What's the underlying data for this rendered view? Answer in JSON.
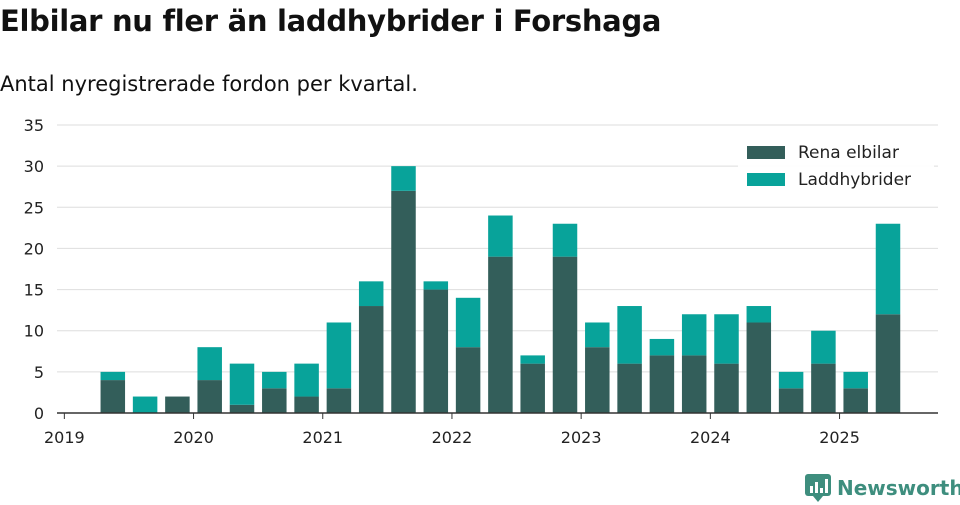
{
  "title": "Elbilar nu fler än laddhybrider i Forshaga",
  "subtitle": "Antal nyregistrerade fordon per kvartal.",
  "brand": {
    "name": "Newsworthy",
    "icon": "newsworthy-logo-icon",
    "color": "#3e8e7e"
  },
  "chart_data": {
    "type": "bar",
    "stacked": true,
    "categories": [
      "2019Q1",
      "2019Q2",
      "2019Q3",
      "2019Q4",
      "2020Q1",
      "2020Q2",
      "2020Q3",
      "2020Q4",
      "2021Q1",
      "2021Q2",
      "2021Q3",
      "2021Q4",
      "2022Q1",
      "2022Q2",
      "2022Q3",
      "2022Q4",
      "2023Q1",
      "2023Q2",
      "2023Q3",
      "2023Q4",
      "2024Q1",
      "2024Q2",
      "2024Q3",
      "2024Q4",
      "2025Q1",
      "2025Q2"
    ],
    "x_tick_labels": [
      "2019",
      "2020",
      "2021",
      "2022",
      "2023",
      "2024",
      "2025"
    ],
    "series": [
      {
        "name": "Rena elbilar",
        "color": "#335e5a",
        "values": [
          0,
          4,
          0,
          2,
          4,
          1,
          3,
          2,
          3,
          13,
          27,
          15,
          8,
          19,
          6,
          19,
          8,
          6,
          7,
          7,
          6,
          11,
          3,
          6,
          3,
          12
        ]
      },
      {
        "name": "Laddhybrider",
        "color": "#08a39a",
        "values": [
          0,
          1,
          2,
          0,
          4,
          5,
          2,
          4,
          8,
          3,
          3,
          1,
          6,
          5,
          1,
          4,
          3,
          7,
          2,
          5,
          6,
          2,
          2,
          4,
          2,
          11
        ]
      }
    ],
    "ylim": [
      0,
      35
    ],
    "y_ticks": [
      0,
      5,
      10,
      15,
      20,
      25,
      30,
      35
    ],
    "grid": true,
    "legend_position": "top-right",
    "xlabel": "",
    "ylabel": ""
  }
}
